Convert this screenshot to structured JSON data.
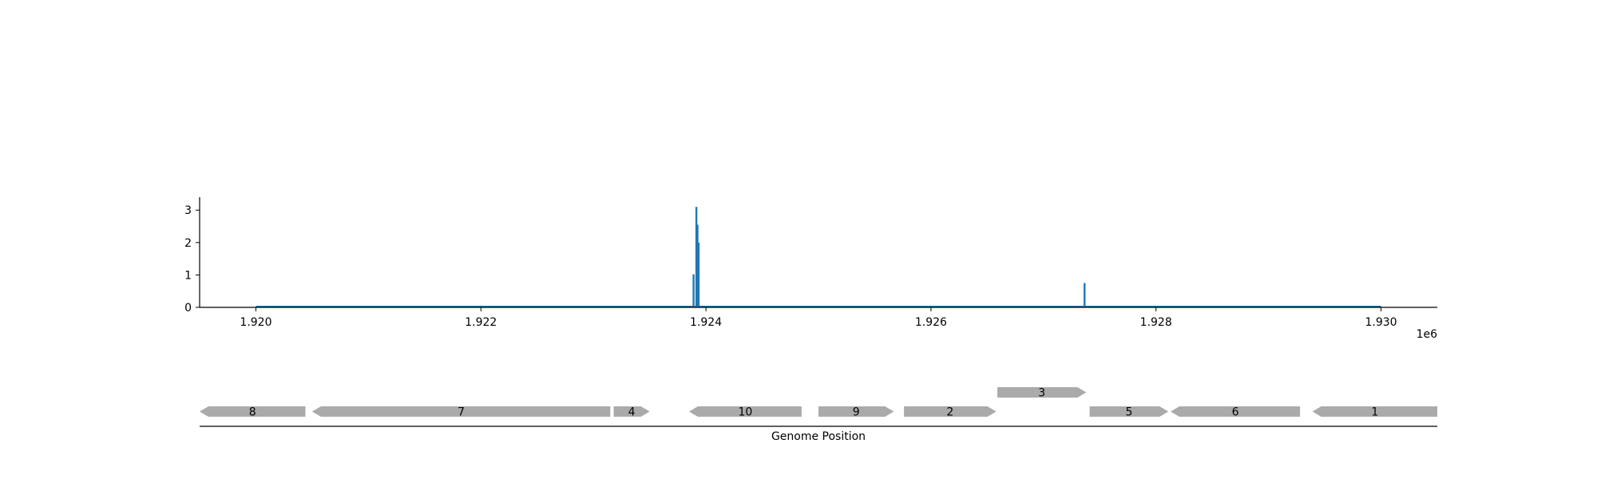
{
  "chart_data": {
    "type": "bar",
    "x_tick_labels": [
      "1.920",
      "1.922",
      "1.924",
      "1.926",
      "1.928",
      "1.930"
    ],
    "x_ticks": [
      1920000,
      1922000,
      1924000,
      1926000,
      1928000,
      1930000
    ],
    "x_offset_label": "1e6",
    "y_tick_labels": [
      "0",
      "1",
      "2",
      "3"
    ],
    "y_ticks": [
      0,
      1,
      2,
      3
    ],
    "xlim": [
      1919500,
      1930500
    ],
    "ylim": [
      0,
      3.4
    ],
    "baseline": [
      1920000,
      1930000
    ],
    "bars": [
      {
        "x": 1923890,
        "y": 1.02
      },
      {
        "x": 1923915,
        "y": 3.1
      },
      {
        "x": 1923925,
        "y": 2.55
      },
      {
        "x": 1923935,
        "y": 2.0
      },
      {
        "x": 1927365,
        "y": 0.75
      }
    ],
    "bar_color": "#1f77b4",
    "genes_axis_label": "Genome Position",
    "gene_color": "#aaaaaa",
    "genes": [
      {
        "label": "8",
        "start": 1919500,
        "end": 1920440,
        "strand": "-",
        "row": 0
      },
      {
        "label": "7",
        "start": 1920500,
        "end": 1923150,
        "strand": "-",
        "row": 0
      },
      {
        "label": "4",
        "start": 1923180,
        "end": 1923500,
        "strand": "+",
        "row": 0
      },
      {
        "label": "10",
        "start": 1923850,
        "end": 1924850,
        "strand": "-",
        "row": 0
      },
      {
        "label": "9",
        "start": 1925000,
        "end": 1925670,
        "strand": "+",
        "row": 0
      },
      {
        "label": "2",
        "start": 1925760,
        "end": 1926580,
        "strand": "+",
        "row": 0
      },
      {
        "label": "3",
        "start": 1926590,
        "end": 1927380,
        "strand": "+",
        "row": 1
      },
      {
        "label": "5",
        "start": 1927410,
        "end": 1928110,
        "strand": "+",
        "row": 0
      },
      {
        "label": "6",
        "start": 1928130,
        "end": 1929280,
        "strand": "-",
        "row": 0
      },
      {
        "label": "1",
        "start": 1929390,
        "end": 1930500,
        "strand": "-",
        "row": 0
      }
    ]
  }
}
